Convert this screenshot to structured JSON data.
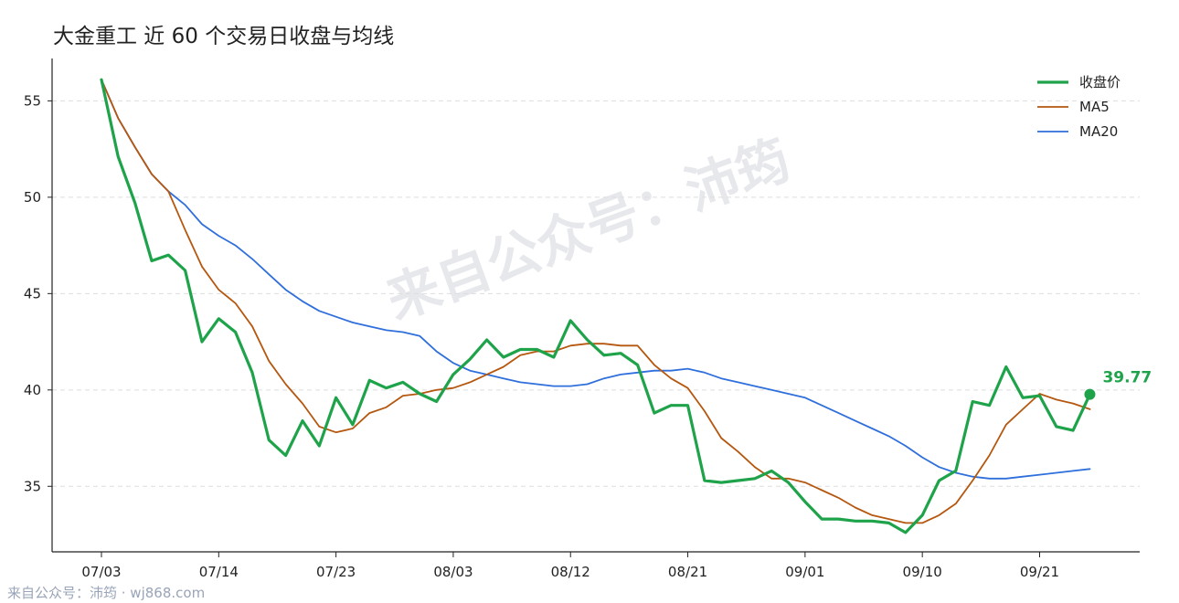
{
  "colors": {
    "close": "#1fa34a",
    "ma5": "#b5570f",
    "ma20": "#2f6fdc",
    "grid": "#dddddd",
    "axis": "#222222",
    "watermark": "#d5d9e0",
    "footer": "#9aa4b8"
  },
  "watermark_text": "来自公众号：沛筠",
  "footer_text": "来自公众号：沛筠 · wj868.com",
  "chart_data": {
    "type": "line",
    "title": "大金重工 近 60 个交易日收盘与均线",
    "xlabel": "",
    "ylabel": "",
    "ylim": [
      31.6,
      57.2
    ],
    "y_ticks": [
      35,
      40,
      45,
      50,
      55
    ],
    "x_tick_labels": [
      "07/03",
      "07/14",
      "07/23",
      "08/03",
      "08/12",
      "08/21",
      "09/01",
      "09/10",
      "09/21"
    ],
    "x_tick_indices": [
      0,
      7,
      14,
      21,
      28,
      35,
      42,
      49,
      56
    ],
    "grid": "horizontal",
    "legend_position": "top-right",
    "last_close_label": "39.77",
    "series": [
      {
        "name": "收盘价",
        "values": [
          56.1,
          52.1,
          49.7,
          46.7,
          47.0,
          46.2,
          42.5,
          43.7,
          43.0,
          40.9,
          37.4,
          36.6,
          38.4,
          37.1,
          39.6,
          38.2,
          40.5,
          40.1,
          40.4,
          39.8,
          39.4,
          40.8,
          41.6,
          42.6,
          41.7,
          42.1,
          42.1,
          41.7,
          43.6,
          42.6,
          41.8,
          41.9,
          41.3,
          38.8,
          39.2,
          39.2,
          35.3,
          35.2,
          35.3,
          35.4,
          35.8,
          35.2,
          34.2,
          33.3,
          33.3,
          33.2,
          33.2,
          33.1,
          32.6,
          33.5,
          35.3,
          35.8,
          39.4,
          39.2,
          41.2,
          39.6,
          39.7,
          38.1,
          37.9,
          39.77
        ]
      },
      {
        "name": "MA5",
        "values": [
          56.1,
          54.1,
          52.6,
          51.2,
          50.3,
          48.3,
          46.4,
          45.2,
          44.5,
          43.3,
          41.5,
          40.3,
          39.3,
          38.1,
          37.8,
          38.0,
          38.8,
          39.1,
          39.7,
          39.8,
          40.0,
          40.1,
          40.4,
          40.8,
          41.2,
          41.8,
          42.0,
          42.0,
          42.3,
          42.4,
          42.4,
          42.3,
          42.3,
          41.3,
          40.6,
          40.1,
          38.9,
          37.5,
          36.8,
          36.0,
          35.4,
          35.4,
          35.2,
          34.8,
          34.4,
          33.9,
          33.5,
          33.3,
          33.1,
          33.1,
          33.5,
          34.1,
          35.3,
          36.6,
          38.2,
          39.0,
          39.8,
          39.5,
          39.3,
          39.0
        ]
      },
      {
        "name": "MA20",
        "values": [
          56.1,
          54.1,
          52.6,
          51.2,
          50.3,
          49.6,
          48.6,
          48.0,
          47.5,
          46.8,
          46.0,
          45.2,
          44.6,
          44.1,
          43.8,
          43.5,
          43.3,
          43.1,
          43.0,
          42.8,
          42.0,
          41.4,
          41.0,
          40.8,
          40.6,
          40.4,
          40.3,
          40.2,
          40.2,
          40.3,
          40.6,
          40.8,
          40.9,
          41.0,
          41.0,
          41.1,
          40.9,
          40.6,
          40.4,
          40.2,
          40.0,
          39.8,
          39.6,
          39.2,
          38.8,
          38.4,
          38.0,
          37.6,
          37.1,
          36.5,
          36.0,
          35.7,
          35.5,
          35.4,
          35.4,
          35.5,
          35.6,
          35.7,
          35.8,
          35.9
        ]
      }
    ]
  }
}
